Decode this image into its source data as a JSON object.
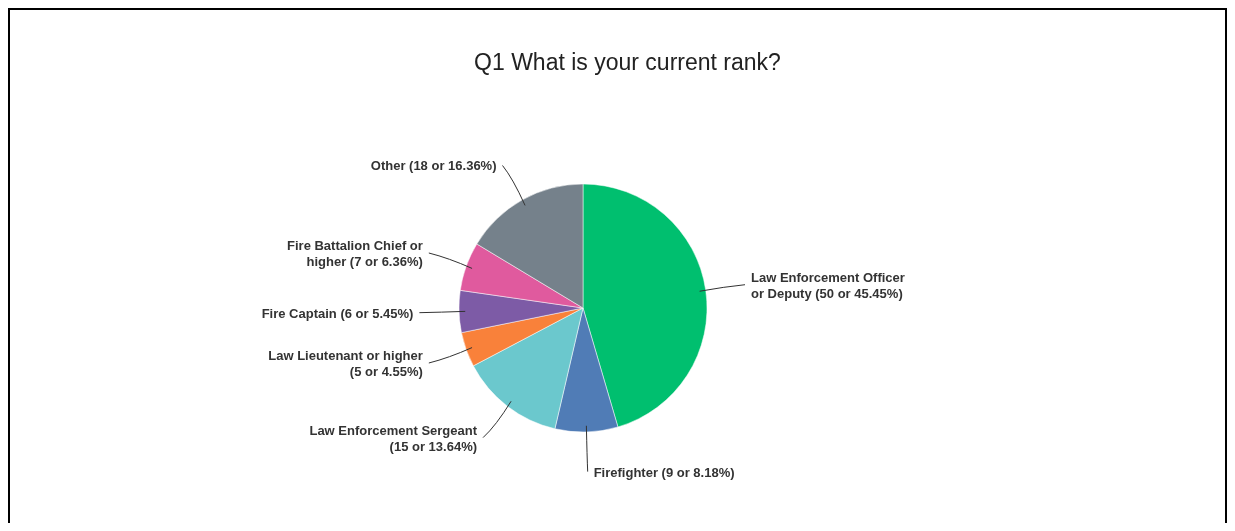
{
  "chart_data": {
    "type": "pie",
    "title": "Q1 What is your current rank?",
    "categories": [
      "Law Enforcement Officer or Deputy",
      "Firefighter",
      "Law Enforcement Sergeant",
      "Law Lieutenant or higher",
      "Fire Captain",
      "Fire Battalion Chief or higher",
      "Other"
    ],
    "values": [
      50,
      9,
      15,
      5,
      6,
      7,
      18
    ],
    "value_labels": [
      "(50 or 45.45%)",
      "(9 or 8.18%)",
      "(15 or 13.64%)",
      "(5 or 4.55%)",
      "(6 or 5.45%)",
      "(7 or 6.36%)",
      "(18 or 16.36%)"
    ],
    "colors": [
      "#00bf6f",
      "#507cb6",
      "#6bc8cd",
      "#f9813a",
      "#7d5ba6",
      "#e05a9e",
      "#75818b"
    ]
  }
}
